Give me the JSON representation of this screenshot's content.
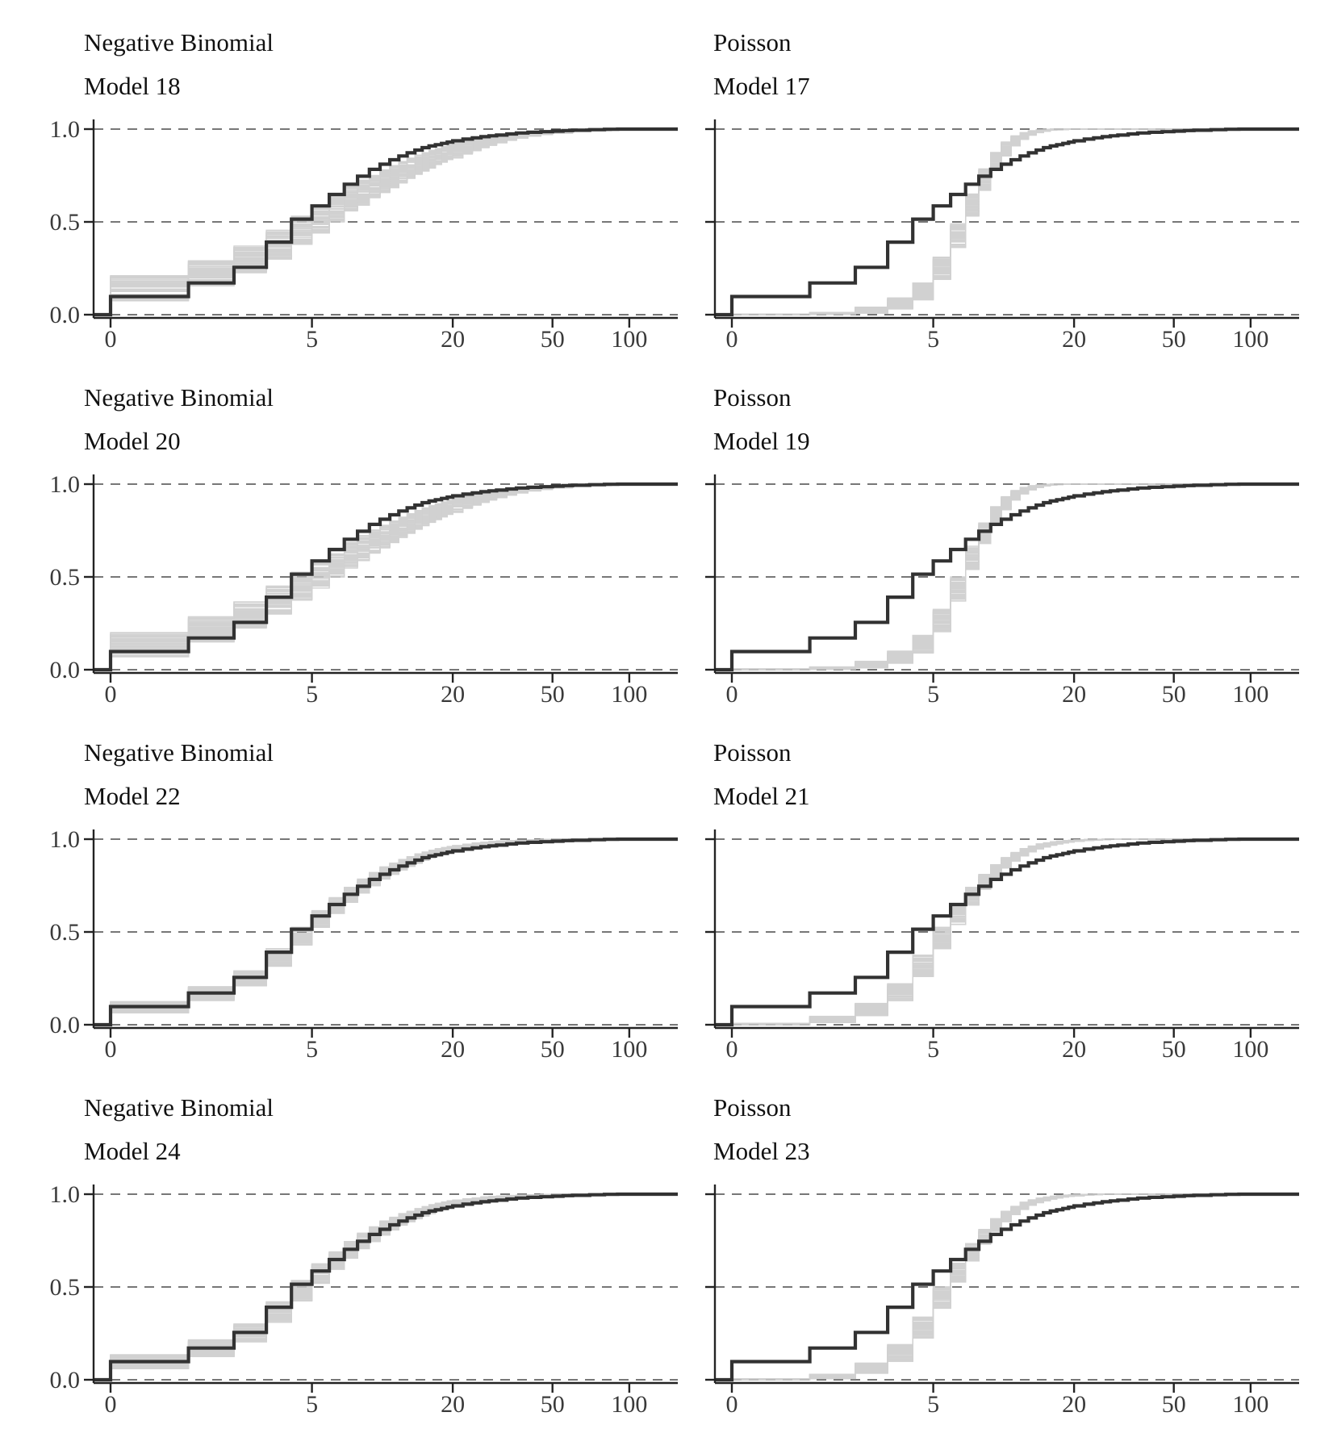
{
  "figure": {
    "kind": "posterior predictive ECDF overlay grid",
    "grid": "4 rows x 2 columns"
  },
  "colors": {
    "observed_line": "#323232",
    "draw_line": "#c9c9c9",
    "gridline": "#4a4a4a",
    "axis": "#232323",
    "tick_label": "#3a3a3a",
    "title": "#111111",
    "background": "#ffffff"
  },
  "chart_data": {
    "type": "line",
    "subtype": "ecdf_step_overlay",
    "x_scale": "log1p",
    "x_range": [
      0,
      130
    ],
    "x_ticks": [
      0,
      5,
      20,
      50,
      100
    ],
    "x_tick_labels": [
      "0",
      "5",
      "20",
      "50",
      "100"
    ],
    "y_ticks": [
      0,
      0.5,
      1
    ],
    "y_tick_labels": [
      "0.0",
      "0.5",
      "1.0"
    ],
    "grid_dashed_at": [
      0,
      0.5,
      1
    ],
    "legend_position": "none",
    "pred_draws_rendered": 55,
    "observed_ecdf": {
      "x": [
        0,
        1,
        2,
        3,
        4,
        5,
        6,
        7,
        8,
        9,
        10,
        11,
        12,
        13,
        14,
        15,
        16,
        17,
        18,
        19,
        20,
        22,
        24,
        26,
        28,
        30,
        33,
        36,
        40,
        45,
        50,
        55,
        60,
        70,
        80,
        90
      ],
      "F": [
        0.098,
        0.171,
        0.255,
        0.391,
        0.515,
        0.586,
        0.648,
        0.703,
        0.746,
        0.783,
        0.811,
        0.835,
        0.855,
        0.872,
        0.887,
        0.9,
        0.909,
        0.916,
        0.923,
        0.93,
        0.937,
        0.946,
        0.953,
        0.959,
        0.964,
        0.968,
        0.974,
        0.979,
        0.983,
        0.986,
        0.989,
        0.992,
        0.994,
        0.997,
        0.999,
        1.0
      ]
    },
    "panels": [
      {
        "distribution": "Negative Binomial",
        "model": "Model 18",
        "row": 1,
        "column": "left",
        "y_labels_shown": true,
        "band": [
          [
            0,
            0.075,
            0.21
          ],
          [
            1,
            0.155,
            0.29
          ],
          [
            2,
            0.225,
            0.37
          ],
          [
            3,
            0.3,
            0.455
          ],
          [
            4,
            0.375,
            0.53
          ],
          [
            5,
            0.44,
            0.59
          ],
          [
            6,
            0.5,
            0.645
          ],
          [
            7,
            0.55,
            0.69
          ],
          [
            8,
            0.59,
            0.725
          ],
          [
            9,
            0.625,
            0.755
          ],
          [
            10,
            0.655,
            0.78
          ],
          [
            12,
            0.71,
            0.825
          ],
          [
            14,
            0.755,
            0.86
          ],
          [
            16,
            0.79,
            0.885
          ],
          [
            18,
            0.82,
            0.905
          ],
          [
            20,
            0.845,
            0.925
          ],
          [
            23,
            0.875,
            0.945
          ],
          [
            26,
            0.9,
            0.96
          ],
          [
            30,
            0.925,
            0.972
          ],
          [
            35,
            0.948,
            0.982
          ],
          [
            40,
            0.962,
            0.988
          ],
          [
            50,
            0.978,
            0.994
          ],
          [
            60,
            0.987,
            0.998
          ],
          [
            75,
            0.994,
            1
          ],
          [
            90,
            0.998,
            1
          ],
          [
            100,
            1,
            1
          ],
          [
            130,
            1,
            1
          ]
        ]
      },
      {
        "distribution": "Poisson",
        "model": "Model 17",
        "row": 1,
        "column": "right",
        "y_labels_shown": false,
        "band": [
          [
            0,
            0,
            0.003
          ],
          [
            1,
            0.001,
            0.012
          ],
          [
            2,
            0.008,
            0.04
          ],
          [
            3,
            0.03,
            0.09
          ],
          [
            4,
            0.08,
            0.17
          ],
          [
            5,
            0.19,
            0.31
          ],
          [
            6,
            0.36,
            0.49
          ],
          [
            7,
            0.53,
            0.655
          ],
          [
            8,
            0.67,
            0.785
          ],
          [
            9,
            0.78,
            0.875
          ],
          [
            10,
            0.855,
            0.93
          ],
          [
            11,
            0.91,
            0.963
          ],
          [
            12,
            0.945,
            0.981
          ],
          [
            13,
            0.967,
            0.991
          ],
          [
            14,
            0.981,
            0.996
          ],
          [
            15,
            0.989,
            0.999
          ],
          [
            16,
            0.994,
            1
          ],
          [
            18,
            0.998,
            1
          ],
          [
            20,
            1,
            1
          ],
          [
            130,
            1,
            1
          ]
        ]
      },
      {
        "distribution": "Negative Binomial",
        "model": "Model 20",
        "row": 2,
        "column": "left",
        "y_labels_shown": true,
        "band": [
          [
            0,
            0.07,
            0.2
          ],
          [
            1,
            0.15,
            0.285
          ],
          [
            2,
            0.225,
            0.365
          ],
          [
            3,
            0.3,
            0.45
          ],
          [
            4,
            0.375,
            0.525
          ],
          [
            5,
            0.44,
            0.585
          ],
          [
            6,
            0.5,
            0.64
          ],
          [
            7,
            0.548,
            0.685
          ],
          [
            8,
            0.588,
            0.722
          ],
          [
            9,
            0.625,
            0.752
          ],
          [
            10,
            0.656,
            0.778
          ],
          [
            12,
            0.712,
            0.822
          ],
          [
            14,
            0.757,
            0.858
          ],
          [
            16,
            0.793,
            0.884
          ],
          [
            18,
            0.823,
            0.904
          ],
          [
            20,
            0.848,
            0.922
          ],
          [
            23,
            0.878,
            0.943
          ],
          [
            26,
            0.902,
            0.958
          ],
          [
            30,
            0.927,
            0.971
          ],
          [
            35,
            0.949,
            0.981
          ],
          [
            40,
            0.963,
            0.988
          ],
          [
            50,
            0.979,
            0.994
          ],
          [
            60,
            0.988,
            0.998
          ],
          [
            75,
            0.995,
            1
          ],
          [
            90,
            0.998,
            1
          ],
          [
            100,
            1,
            1
          ],
          [
            130,
            1,
            1
          ]
        ]
      },
      {
        "distribution": "Poisson",
        "model": "Model 19",
        "row": 2,
        "column": "right",
        "y_labels_shown": false,
        "band": [
          [
            0,
            0,
            0.004
          ],
          [
            1,
            0.002,
            0.015
          ],
          [
            2,
            0.01,
            0.045
          ],
          [
            3,
            0.035,
            0.1
          ],
          [
            4,
            0.09,
            0.185
          ],
          [
            5,
            0.2,
            0.325
          ],
          [
            6,
            0.37,
            0.5
          ],
          [
            7,
            0.54,
            0.665
          ],
          [
            8,
            0.68,
            0.79
          ],
          [
            9,
            0.79,
            0.878
          ],
          [
            10,
            0.862,
            0.932
          ],
          [
            11,
            0.915,
            0.965
          ],
          [
            12,
            0.948,
            0.982
          ],
          [
            13,
            0.969,
            0.992
          ],
          [
            14,
            0.982,
            0.997
          ],
          [
            15,
            0.99,
            0.999
          ],
          [
            16,
            0.995,
            1
          ],
          [
            18,
            0.999,
            1
          ],
          [
            20,
            1,
            1
          ],
          [
            130,
            1,
            1
          ]
        ]
      },
      {
        "distribution": "Negative Binomial",
        "model": "Model 22",
        "row": 3,
        "column": "left",
        "y_labels_shown": true,
        "band": [
          [
            0,
            0.065,
            0.125
          ],
          [
            1,
            0.13,
            0.205
          ],
          [
            2,
            0.21,
            0.29
          ],
          [
            3,
            0.315,
            0.41
          ],
          [
            4,
            0.43,
            0.525
          ],
          [
            5,
            0.525,
            0.615
          ],
          [
            6,
            0.6,
            0.685
          ],
          [
            7,
            0.66,
            0.74
          ],
          [
            8,
            0.71,
            0.785
          ],
          [
            9,
            0.75,
            0.82
          ],
          [
            10,
            0.785,
            0.85
          ],
          [
            12,
            0.835,
            0.89
          ],
          [
            14,
            0.87,
            0.92
          ],
          [
            16,
            0.9,
            0.94
          ],
          [
            18,
            0.92,
            0.955
          ],
          [
            20,
            0.936,
            0.966
          ],
          [
            23,
            0.952,
            0.977
          ],
          [
            26,
            0.963,
            0.984
          ],
          [
            30,
            0.974,
            0.99
          ],
          [
            35,
            0.982,
            0.994
          ],
          [
            40,
            0.987,
            0.997
          ],
          [
            50,
            0.993,
            1
          ],
          [
            60,
            0.996,
            1
          ],
          [
            75,
            1,
            1
          ],
          [
            130,
            1,
            1
          ]
        ]
      },
      {
        "distribution": "Poisson",
        "model": "Model 21",
        "row": 3,
        "column": "right",
        "y_labels_shown": false,
        "band": [
          [
            0,
            0,
            0.008
          ],
          [
            1,
            0.012,
            0.045
          ],
          [
            2,
            0.05,
            0.115
          ],
          [
            3,
            0.13,
            0.225
          ],
          [
            4,
            0.26,
            0.375
          ],
          [
            5,
            0.41,
            0.525
          ],
          [
            6,
            0.54,
            0.645
          ],
          [
            7,
            0.645,
            0.74
          ],
          [
            8,
            0.73,
            0.81
          ],
          [
            9,
            0.795,
            0.862
          ],
          [
            10,
            0.845,
            0.9
          ],
          [
            11,
            0.882,
            0.928
          ],
          [
            12,
            0.91,
            0.949
          ],
          [
            13,
            0.932,
            0.963
          ],
          [
            14,
            0.948,
            0.974
          ],
          [
            16,
            0.968,
            0.986
          ],
          [
            18,
            0.98,
            0.992
          ],
          [
            20,
            0.988,
            0.996
          ],
          [
            23,
            0.994,
            0.999
          ],
          [
            26,
            0.997,
            1
          ],
          [
            30,
            1,
            1
          ],
          [
            130,
            1,
            1
          ]
        ]
      },
      {
        "distribution": "Negative Binomial",
        "model": "Model 24",
        "row": 4,
        "column": "left",
        "y_labels_shown": true,
        "band": [
          [
            0,
            0.06,
            0.135
          ],
          [
            1,
            0.125,
            0.215
          ],
          [
            2,
            0.205,
            0.3
          ],
          [
            3,
            0.31,
            0.42
          ],
          [
            4,
            0.425,
            0.535
          ],
          [
            5,
            0.52,
            0.625
          ],
          [
            6,
            0.595,
            0.69
          ],
          [
            7,
            0.655,
            0.745
          ],
          [
            8,
            0.705,
            0.79
          ],
          [
            9,
            0.745,
            0.825
          ],
          [
            10,
            0.78,
            0.855
          ],
          [
            12,
            0.833,
            0.895
          ],
          [
            14,
            0.868,
            0.922
          ],
          [
            16,
            0.896,
            0.943
          ],
          [
            18,
            0.918,
            0.958
          ],
          [
            20,
            0.934,
            0.968
          ],
          [
            23,
            0.951,
            0.978
          ],
          [
            26,
            0.962,
            0.985
          ],
          [
            30,
            0.973,
            0.99
          ],
          [
            35,
            0.981,
            0.995
          ],
          [
            40,
            0.987,
            0.997
          ],
          [
            50,
            0.993,
            1
          ],
          [
            60,
            0.996,
            1
          ],
          [
            75,
            1,
            1
          ],
          [
            130,
            1,
            1
          ]
        ]
      },
      {
        "distribution": "Poisson",
        "model": "Model 23",
        "row": 4,
        "column": "right",
        "y_labels_shown": false,
        "band": [
          [
            0,
            0,
            0.005
          ],
          [
            1,
            0.006,
            0.03
          ],
          [
            2,
            0.035,
            0.09
          ],
          [
            3,
            0.1,
            0.19
          ],
          [
            4,
            0.225,
            0.34
          ],
          [
            5,
            0.385,
            0.5
          ],
          [
            6,
            0.525,
            0.63
          ],
          [
            7,
            0.64,
            0.735
          ],
          [
            8,
            0.73,
            0.81
          ],
          [
            9,
            0.8,
            0.868
          ],
          [
            10,
            0.852,
            0.908
          ],
          [
            11,
            0.89,
            0.936
          ],
          [
            12,
            0.918,
            0.956
          ],
          [
            13,
            0.94,
            0.969
          ],
          [
            14,
            0.955,
            0.979
          ],
          [
            16,
            0.974,
            0.989
          ],
          [
            18,
            0.985,
            0.995
          ],
          [
            20,
            0.991,
            0.998
          ],
          [
            23,
            0.996,
            1
          ],
          [
            26,
            0.999,
            1
          ],
          [
            30,
            1,
            1
          ],
          [
            130,
            1,
            1
          ]
        ]
      }
    ]
  }
}
